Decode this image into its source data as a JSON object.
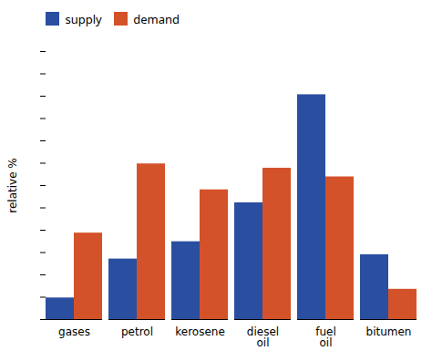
{
  "chart_data": {
    "type": "bar",
    "categories": [
      "gases",
      "petrol",
      "kerosene",
      "diesel\noil",
      "fuel\noil",
      "bitumen"
    ],
    "series": [
      {
        "name": "supply",
        "color": "#2b4fa0",
        "values": [
          5,
          14,
          18,
          27,
          52,
          15
        ]
      },
      {
        "name": "demand",
        "color": "#d4522a",
        "values": [
          20,
          36,
          30,
          35,
          33,
          7
        ]
      }
    ],
    "ylabel": "relative %",
    "ylim": [
      0,
      62
    ],
    "yticks": [
      0,
      5.166666666666667,
      10.333333333333334,
      15.5,
      20.666666666666668,
      25.833333333333336,
      31.000000000000004,
      36.16666666666667,
      41.333333333333336,
      46.5,
      51.66666666666667,
      56.833333333333336,
      62
    ],
    "tick_labels": "x",
    "grid": false,
    "legend": "upper left"
  }
}
